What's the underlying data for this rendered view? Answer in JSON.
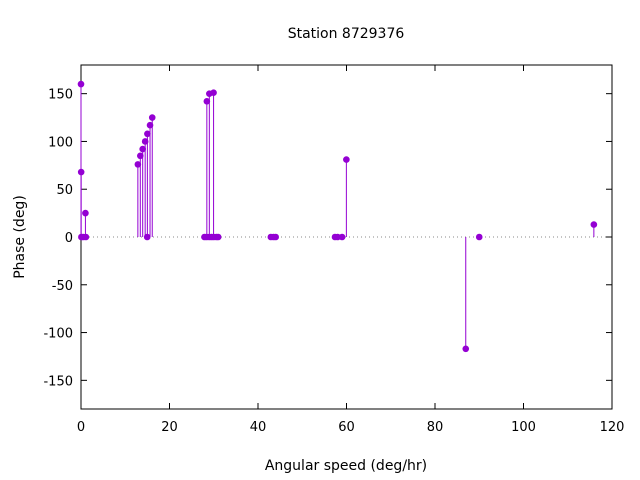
{
  "chart_data": {
    "type": "stem",
    "title": "Station 8729376",
    "xlabel": "Angular speed (deg/hr)",
    "ylabel": "Phase (deg)",
    "xlim": [
      0,
      120
    ],
    "ylim": [
      -180,
      180
    ],
    "xticks": [
      0,
      20,
      40,
      60,
      80,
      100,
      120
    ],
    "yticks": [
      -150,
      -100,
      -50,
      0,
      50,
      100,
      150
    ],
    "grid": false,
    "zero_line": "dotted",
    "series_color": "#9400d3",
    "points": [
      {
        "x": 0.0,
        "y": 160
      },
      {
        "x": 0.04,
        "y": 68
      },
      {
        "x": 0.08,
        "y": 0
      },
      {
        "x": 0.5,
        "y": 0
      },
      {
        "x": 1.0,
        "y": 25
      },
      {
        "x": 1.1,
        "y": 0
      },
      {
        "x": 12.85,
        "y": 76
      },
      {
        "x": 13.4,
        "y": 85
      },
      {
        "x": 13.94,
        "y": 92
      },
      {
        "x": 14.5,
        "y": 100
      },
      {
        "x": 14.96,
        "y": 0
      },
      {
        "x": 15.0,
        "y": 108
      },
      {
        "x": 15.6,
        "y": 117
      },
      {
        "x": 16.1,
        "y": 125
      },
      {
        "x": 27.9,
        "y": 0
      },
      {
        "x": 28.4,
        "y": 0
      },
      {
        "x": 28.44,
        "y": 142
      },
      {
        "x": 28.98,
        "y": 0
      },
      {
        "x": 29.0,
        "y": 150
      },
      {
        "x": 29.5,
        "y": 0
      },
      {
        "x": 29.96,
        "y": 151
      },
      {
        "x": 30.0,
        "y": 0
      },
      {
        "x": 30.6,
        "y": 0
      },
      {
        "x": 31.0,
        "y": 0
      },
      {
        "x": 42.9,
        "y": 0
      },
      {
        "x": 43.5,
        "y": 0
      },
      {
        "x": 44.0,
        "y": 0
      },
      {
        "x": 57.4,
        "y": 0
      },
      {
        "x": 58.0,
        "y": 0
      },
      {
        "x": 59.0,
        "y": 0
      },
      {
        "x": 59.97,
        "y": 81
      },
      {
        "x": 86.95,
        "y": -117
      },
      {
        "x": 90.0,
        "y": 0
      },
      {
        "x": 115.9,
        "y": 13
      }
    ]
  }
}
